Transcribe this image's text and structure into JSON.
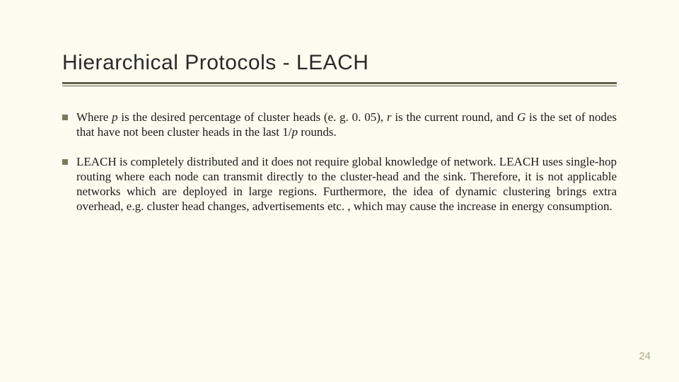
{
  "background_color": "#fcfcf0",
  "title_color": "#2a2a2a",
  "underline_color": "#5f5f4a",
  "bullet_marker_color": "#7a7a5a",
  "body_text_color": "#1a1a1a",
  "page_number_color": "#b0a97f",
  "title_font_family": "Segoe UI Light",
  "body_font_family": "Times New Roman",
  "title_fontsize": 30,
  "body_fontsize": 17,
  "page_number_fontsize": 15,
  "title": "Hierarchical Protocols - LEACH",
  "bullets": [
    {
      "segments": [
        {
          "text": "Where "
        },
        {
          "text": "p",
          "italic": true
        },
        {
          "text": " is the desired percentage of cluster heads (e. g. 0. 05), "
        },
        {
          "text": "r",
          "italic": true
        },
        {
          "text": " is the current round, and "
        },
        {
          "text": "G",
          "italic": true
        },
        {
          "text": " is the set of nodes that have not been cluster heads in the last 1/"
        },
        {
          "text": "p",
          "italic": true
        },
        {
          "text": " rounds."
        }
      ]
    },
    {
      "segments": [
        {
          "text": "LEACH is completely distributed and it does not require global knowledge of network. LEACH uses single-hop routing where each node can transmit directly to the cluster-head and the sink. Therefore, it is not applicable networks which are deployed in large regions. Furthermore, the idea of dynamic clustering brings extra overhead, e.g. cluster head changes, advertisements etc. , which may cause the increase in energy consumption."
        }
      ]
    }
  ],
  "page_number": "24"
}
